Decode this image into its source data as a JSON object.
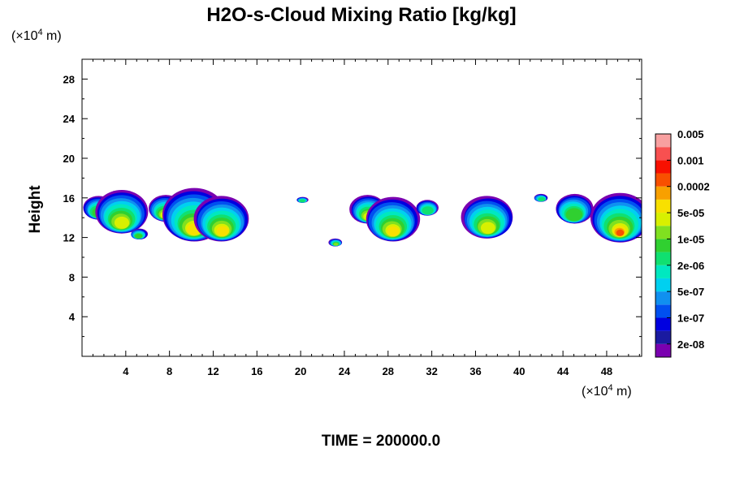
{
  "chart_data": {
    "type": "heatmap",
    "title": "H2O-s-Cloud Mixing Ratio [kg/kg]",
    "ylabel": "Height",
    "x_unit": {
      "prefix": "(×10",
      "exp": "4",
      "suffix": " m)"
    },
    "y_unit": {
      "prefix": "(×10",
      "exp": "4",
      "suffix": " m)"
    },
    "xlim": [
      0,
      51.2
    ],
    "ylim": [
      0,
      30
    ],
    "x_ticks": [
      4,
      8,
      12,
      16,
      20,
      24,
      28,
      32,
      36,
      40,
      44,
      48
    ],
    "y_ticks": [
      4,
      8,
      12,
      16,
      20,
      24,
      28
    ],
    "colorbar": {
      "colors": [
        "#7a00b0",
        "#1a1aa0",
        "#0000e0",
        "#0050f0",
        "#1090f0",
        "#00d0f0",
        "#00e8c0",
        "#10e070",
        "#30d030",
        "#80e020",
        "#d8f000",
        "#f8e000",
        "#f8a000",
        "#f85000",
        "#f81000",
        "#f85050",
        "#f8a0a0"
      ],
      "labels": [
        "2e-08",
        "1e-07",
        "5e-07",
        "2e-06",
        "1e-05",
        "5e-05",
        "0.0002",
        "0.001",
        "0.005"
      ]
    },
    "cloud_cells": [
      {
        "x": 1.5,
        "top": 16.2,
        "bottom": 13.8,
        "core": 1
      },
      {
        "x": 3.6,
        "top": 16.8,
        "bottom": 12.4,
        "core": 3
      },
      {
        "x": 5.2,
        "top": 12.9,
        "bottom": 11.8,
        "core": 1
      },
      {
        "x": 7.6,
        "top": 16.3,
        "bottom": 13.6,
        "core": 3
      },
      {
        "x": 10.2,
        "top": 17.0,
        "bottom": 11.6,
        "core": 4
      },
      {
        "x": 12.8,
        "top": 16.2,
        "bottom": 11.6,
        "core": 4
      },
      {
        "x": 20.2,
        "top": 16.1,
        "bottom": 15.5,
        "core": 0
      },
      {
        "x": 23.2,
        "top": 11.9,
        "bottom": 11.1,
        "core": 2
      },
      {
        "x": 26.2,
        "top": 16.3,
        "bottom": 13.4,
        "core": 3
      },
      {
        "x": 28.4,
        "top": 16.1,
        "bottom": 11.6,
        "core": 4
      },
      {
        "x": 31.6,
        "top": 15.8,
        "bottom": 14.2,
        "core": 0
      },
      {
        "x": 37.1,
        "top": 16.2,
        "bottom": 11.9,
        "core": 3
      },
      {
        "x": 42.0,
        "top": 16.4,
        "bottom": 15.6,
        "core": 0
      },
      {
        "x": 45.0,
        "top": 16.4,
        "bottom": 13.4,
        "core": 1
      },
      {
        "x": 49.2,
        "top": 16.5,
        "bottom": 11.5,
        "core": 6
      }
    ],
    "annotation": {
      "prefix": "TIME = ",
      "value": "200000.0"
    }
  }
}
